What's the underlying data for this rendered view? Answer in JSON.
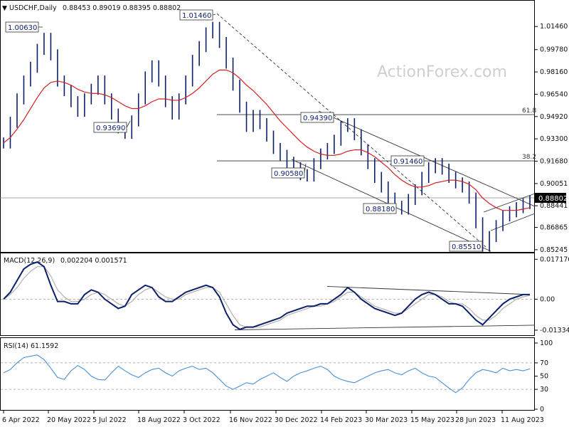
{
  "header": {
    "symbol": "USDCHF,Daily",
    "ohlc": "0.88453 0.89019 0.88395 0.88802",
    "macd_label": "MACD(12,26,9)",
    "macd_values": "0.002204 0.001571",
    "rsi_label": "RSI(14) 61.1592"
  },
  "watermark": "ActionForex.com",
  "colors": {
    "price": "#0b1f6b",
    "ma": "#d42020",
    "signal": "#b0b0b0",
    "rsi": "#4a90d9",
    "badge": "#000000"
  },
  "chart_data": [
    {
      "type": "line",
      "name": "price",
      "ylim": [
        0.8524,
        1.023
      ],
      "price_ticks": [
        "1.01460",
        "0.99780",
        "0.98160",
        "0.96540",
        "0.94920",
        "0.93300",
        "0.91680",
        "0.90051",
        "0.88441",
        "0.86865",
        "0.85245"
      ],
      "x_labels": [
        "6 Apr 2022",
        "20 May 2022",
        "5 Jul 2022",
        "18 Aug 2022",
        "3 Oct 2022",
        "16 Nov 2022",
        "30 Dec 2022",
        "14 Feb 2023",
        "30 Mar 2023",
        "15 May 2023",
        "28 Jun 2023",
        "11 Aug 2023"
      ],
      "last_price": "0.88802",
      "annotations": [
        "1.00630",
        "0.93690",
        "1.01460",
        "0.90580",
        "0.94390",
        "0.91460",
        "0.88180",
        "0.85510"
      ],
      "fib_labels": [
        "61.8",
        "38.2"
      ],
      "fib_levels": [
        0.9506,
        0.917
      ],
      "series": [
        {
          "values": [
            0.93,
            0.945,
            0.962,
            0.975,
            0.985,
            0.998,
            1.006,
            0.994,
            0.975,
            0.968,
            0.96,
            0.953,
            0.962,
            0.969,
            0.975,
            0.962,
            0.951,
            0.941,
            0.937,
            0.946,
            0.962,
            0.978,
            0.986,
            0.975,
            0.96,
            0.951,
            0.962,
            0.975,
            0.99,
            1.0,
            1.01,
            1.014,
            1.003,
            0.988,
            0.972,
            0.956,
            0.942,
            0.95,
            0.944,
            0.935,
            0.926,
            0.921,
            0.916,
            0.912,
            0.907,
            0.906,
            0.915,
            0.922,
            0.926,
            0.932,
            0.942,
            0.944,
            0.936,
            0.925,
            0.915,
            0.905,
            0.898,
            0.89,
            0.884,
            0.882,
            0.889,
            0.896,
            0.905,
            0.912,
            0.915,
            0.911,
            0.905,
            0.901,
            0.898,
            0.89,
            0.872,
            0.855,
            0.862,
            0.87,
            0.877,
            0.88,
            0.883,
            0.886,
            0.888
          ]
        },
        {
          "values": [
            0.93,
            0.934,
            0.94,
            0.947,
            0.955,
            0.963,
            0.97,
            0.974,
            0.975,
            0.974,
            0.972,
            0.969,
            0.967,
            0.966,
            0.966,
            0.965,
            0.963,
            0.96,
            0.957,
            0.955,
            0.955,
            0.957,
            0.96,
            0.962,
            0.962,
            0.961,
            0.961,
            0.963,
            0.966,
            0.97,
            0.975,
            0.98,
            0.983,
            0.983,
            0.981,
            0.977,
            0.972,
            0.968,
            0.963,
            0.958,
            0.952,
            0.946,
            0.941,
            0.936,
            0.931,
            0.927,
            0.924,
            0.922,
            0.921,
            0.921,
            0.922,
            0.924,
            0.925,
            0.925,
            0.923,
            0.92,
            0.916,
            0.912,
            0.907,
            0.903,
            0.9,
            0.898,
            0.898,
            0.899,
            0.901,
            0.902,
            0.903,
            0.903,
            0.902,
            0.9,
            0.896,
            0.89,
            0.886,
            0.883,
            0.881,
            0.881,
            0.881,
            0.882,
            0.883
          ]
        }
      ]
    },
    {
      "type": "line",
      "name": "MACD",
      "ylim": [
        -0.0155,
        0.0185
      ],
      "ticks": [
        "0.017176",
        "0.00",
        "-0.01334"
      ],
      "series": [
        {
          "values": [
            0.0,
            0.003,
            0.008,
            0.013,
            0.015,
            0.016,
            0.014,
            0.006,
            -0.001,
            -0.001,
            -0.002,
            -0.002,
            0.002,
            0.004,
            0.003,
            0.0,
            -0.002,
            -0.004,
            -0.003,
            0.002,
            0.004,
            0.006,
            0.005,
            0.001,
            -0.001,
            -0.001,
            0.001,
            0.003,
            0.004,
            0.005,
            0.006,
            0.005,
            0.001,
            -0.006,
            -0.011,
            -0.013,
            -0.012,
            -0.012,
            -0.011,
            -0.01,
            -0.009,
            -0.008,
            -0.006,
            -0.005,
            -0.004,
            -0.003,
            -0.003,
            -0.002,
            -0.002,
            0.0,
            0.002,
            0.005,
            0.003,
            0.0,
            -0.002,
            -0.004,
            -0.005,
            -0.006,
            -0.007,
            -0.006,
            -0.003,
            0.0,
            0.002,
            0.003,
            0.002,
            0.0,
            -0.002,
            -0.002,
            -0.003,
            -0.006,
            -0.009,
            -0.011,
            -0.008,
            -0.005,
            -0.002,
            0.0,
            0.001,
            0.002,
            0.002
          ]
        },
        {
          "values": [
            0.0,
            0.002,
            0.005,
            0.009,
            0.012,
            0.014,
            0.014,
            0.01,
            0.004,
            0.001,
            -0.001,
            -0.001,
            0.0,
            0.002,
            0.003,
            0.002,
            0.0,
            -0.002,
            -0.003,
            -0.001,
            0.002,
            0.004,
            0.005,
            0.003,
            0.001,
            0.0,
            0.0,
            0.002,
            0.003,
            0.004,
            0.005,
            0.005,
            0.003,
            -0.002,
            -0.007,
            -0.011,
            -0.012,
            -0.012,
            -0.012,
            -0.011,
            -0.01,
            -0.009,
            -0.007,
            -0.006,
            -0.005,
            -0.004,
            -0.003,
            -0.003,
            -0.002,
            -0.001,
            0.001,
            0.003,
            0.003,
            0.001,
            -0.001,
            -0.003,
            -0.004,
            -0.005,
            -0.006,
            -0.006,
            -0.004,
            -0.002,
            0.0,
            0.002,
            0.002,
            0.001,
            -0.001,
            -0.002,
            -0.002,
            -0.004,
            -0.007,
            -0.009,
            -0.009,
            -0.007,
            -0.004,
            -0.002,
            0.0,
            0.001,
            0.0016
          ]
        }
      ]
    },
    {
      "type": "line",
      "name": "RSI",
      "ylim": [
        0,
        100
      ],
      "ticks": [
        "100",
        "70",
        "50",
        "30",
        "0"
      ],
      "series": [
        {
          "values": [
            55,
            60,
            70,
            78,
            80,
            82,
            75,
            62,
            48,
            45,
            58,
            66,
            60,
            50,
            45,
            44,
            55,
            65,
            58,
            52,
            48,
            55,
            60,
            62,
            55,
            50,
            58,
            62,
            65,
            60,
            62,
            55,
            45,
            35,
            30,
            35,
            40,
            38,
            45,
            50,
            55,
            48,
            42,
            50,
            55,
            58,
            62,
            65,
            60,
            50,
            45,
            42,
            40,
            45,
            50,
            55,
            58,
            60,
            55,
            52,
            58,
            62,
            55,
            50,
            48,
            40,
            32,
            25,
            32,
            45,
            55,
            60,
            58,
            55,
            62,
            58,
            60,
            58,
            61
          ]
        }
      ]
    }
  ]
}
